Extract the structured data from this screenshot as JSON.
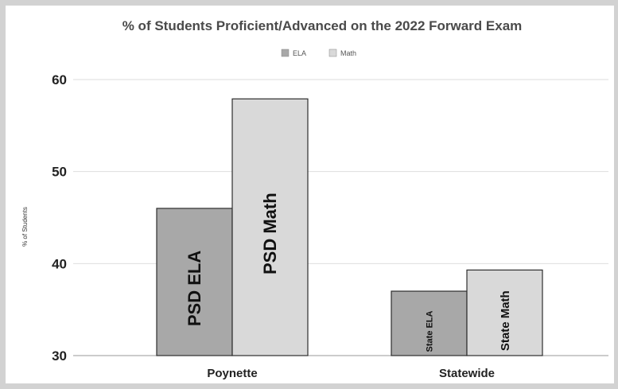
{
  "chart_data": {
    "type": "bar",
    "title": "% of Students Proficient/Advanced on the 2022 Forward Exam",
    "ylabel": "% of Students",
    "xlabel": "",
    "categories": [
      "Poynette",
      "Statewide"
    ],
    "series": [
      {
        "name": "ELA",
        "color": "#a8a8a8",
        "values": [
          46,
          37
        ],
        "bar_labels": [
          "PSD ELA",
          "State ELA"
        ]
      },
      {
        "name": "Math",
        "color": "#d9d9d9",
        "values": [
          57.9,
          39.3
        ],
        "bar_labels": [
          "PSD Math",
          "State Math"
        ]
      }
    ],
    "ylim": [
      30,
      60
    ],
    "yticks": [
      30,
      40,
      50,
      60
    ],
    "grid": true,
    "legend_position": "top-center"
  }
}
